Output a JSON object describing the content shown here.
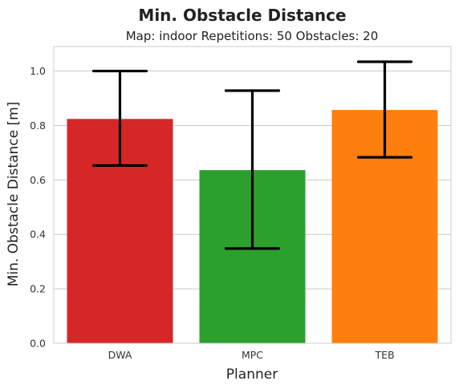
{
  "chart_data": {
    "type": "bar",
    "suptitle": "Min. Obstacle Distance",
    "title": "Map: indoor Repetitions: 50 Obstacles: 20",
    "xlabel": "Planner",
    "ylabel": "Min. Obstacle Distance [m]",
    "categories": [
      "DWA",
      "MPC",
      "TEB"
    ],
    "values": [
      0.824,
      0.636,
      0.857
    ],
    "error_low": [
      0.653,
      0.348,
      0.683
    ],
    "error_high": [
      1.0,
      0.928,
      1.034
    ],
    "colors": [
      "#d62728",
      "#2ca02c",
      "#ff7f0e"
    ],
    "error_color": "#000000",
    "ylim": [
      0,
      1.09
    ],
    "yticks": [
      0.0,
      0.2,
      0.4,
      0.6,
      0.8,
      1.0
    ],
    "ytick_labels": [
      "0.0",
      "0.2",
      "0.4",
      "0.6",
      "0.8",
      "1.0"
    ],
    "grid": "horizontal",
    "background": "#ffffff",
    "grid_color": "#cccccc"
  }
}
